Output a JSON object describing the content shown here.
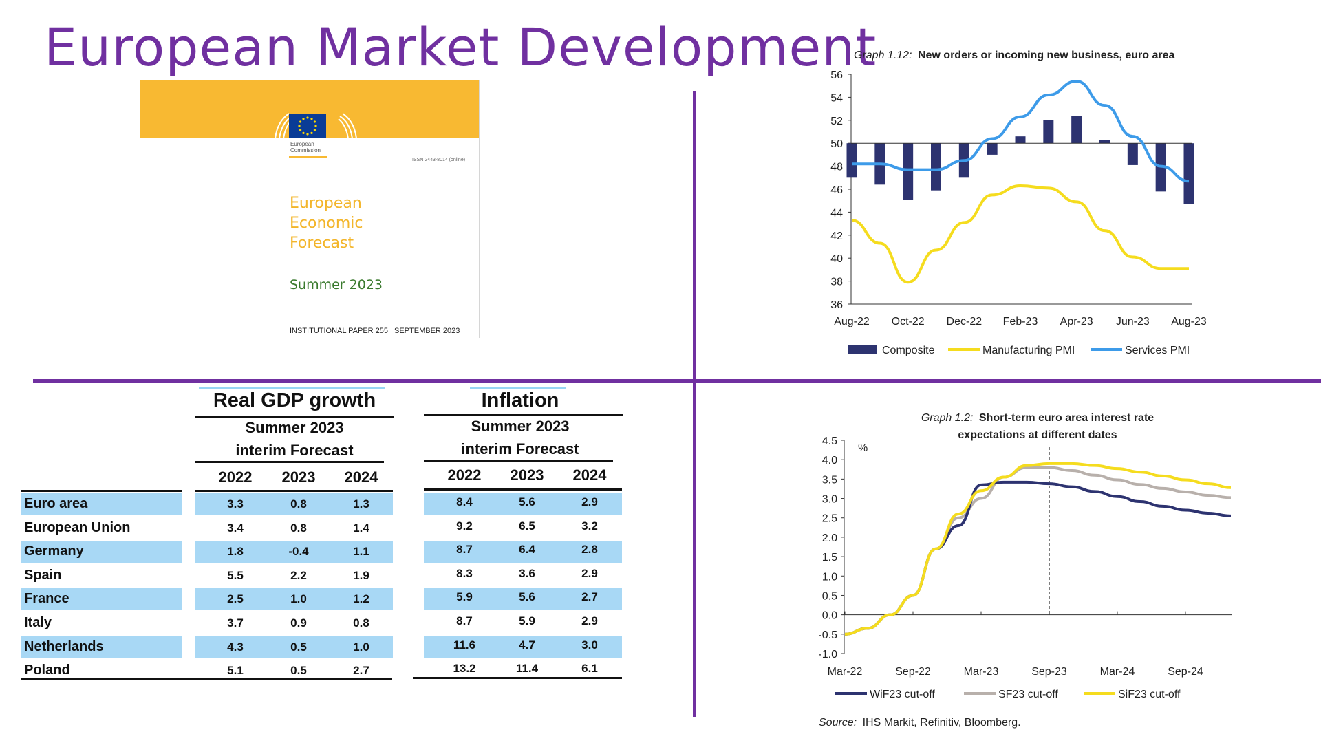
{
  "page": {
    "title": "European Market Development"
  },
  "cover": {
    "publisher_line1": "European",
    "publisher_line2": "Commission",
    "isbn": "ISSN 2443-8014 (online)",
    "title_lines": [
      "European",
      "Economic",
      "Forecast"
    ],
    "edition": "Summer 2023",
    "footer": "INSTITUTIONAL PAPER 255 | SEPTEMBER 2023"
  },
  "tables": {
    "gdp": {
      "title": "Real GDP growth",
      "subtitle_line1": "Summer 2023",
      "subtitle_line2": "interim Forecast",
      "years": [
        "2022",
        "2023",
        "2024"
      ]
    },
    "inflation": {
      "title": "Inflation",
      "subtitle_line1": "Summer 2023",
      "subtitle_line2": "interim Forecast",
      "years": [
        "2022",
        "2023",
        "2024"
      ]
    },
    "rows": [
      {
        "country": "Euro area",
        "gdp": [
          "3.3",
          "0.8",
          "1.3"
        ],
        "inflation": [
          "8.4",
          "5.6",
          "2.9"
        ]
      },
      {
        "country": "European Union",
        "gdp": [
          "3.4",
          "0.8",
          "1.4"
        ],
        "inflation": [
          "9.2",
          "6.5",
          "3.2"
        ]
      },
      {
        "country": "Germany",
        "gdp": [
          "1.8",
          "-0.4",
          "1.1"
        ],
        "inflation": [
          "8.7",
          "6.4",
          "2.8"
        ]
      },
      {
        "country": "Spain",
        "gdp": [
          "5.5",
          "2.2",
          "1.9"
        ],
        "inflation": [
          "8.3",
          "3.6",
          "2.9"
        ]
      },
      {
        "country": "France",
        "gdp": [
          "2.5",
          "1.0",
          "1.2"
        ],
        "inflation": [
          "5.9",
          "5.6",
          "2.7"
        ]
      },
      {
        "country": "Italy",
        "gdp": [
          "3.7",
          "0.9",
          "0.8"
        ],
        "inflation": [
          "8.7",
          "5.9",
          "2.9"
        ]
      },
      {
        "country": "Netherlands",
        "gdp": [
          "4.3",
          "0.5",
          "1.0"
        ],
        "inflation": [
          "11.6",
          "4.7",
          "3.0"
        ]
      },
      {
        "country": "Poland",
        "gdp": [
          "5.1",
          "0.5",
          "2.7"
        ],
        "inflation": [
          "13.2",
          "11.4",
          "6.1"
        ]
      }
    ]
  },
  "chart_data": [
    {
      "type": "bar+line",
      "title_prefix": "Graph 1.12:",
      "title": "New orders or incoming new business, euro area",
      "xlabel": "",
      "ylabel": "",
      "x": [
        "Aug-22",
        "Sep-22",
        "Oct-22",
        "Nov-22",
        "Dec-22",
        "Jan-23",
        "Feb-23",
        "Mar-23",
        "Apr-23",
        "May-23",
        "Jun-23",
        "Jul-23",
        "Aug-23"
      ],
      "x_tick_labels": [
        "Aug-22",
        "Oct-22",
        "Dec-22",
        "Feb-23",
        "Apr-23",
        "Jun-23",
        "Aug-23"
      ],
      "ylim": [
        36,
        56
      ],
      "y_ticks": [
        "36",
        "38",
        "40",
        "42",
        "44",
        "46",
        "48",
        "50",
        "52",
        "54",
        "56"
      ],
      "baseline": 50,
      "series": [
        {
          "name": "Composite",
          "kind": "bar",
          "color": "#2d3370",
          "values": [
            47.0,
            46.4,
            45.1,
            45.9,
            47.0,
            49.0,
            50.6,
            52.0,
            52.4,
            50.3,
            48.1,
            45.8,
            44.7
          ]
        },
        {
          "name": "Manufacturing PMI",
          "kind": "line",
          "color": "#f5dc1e",
          "values": [
            43.3,
            41.3,
            37.9,
            40.7,
            43.1,
            45.5,
            46.3,
            46.1,
            44.9,
            42.4,
            40.1,
            39.1,
            39.1
          ]
        },
        {
          "name": "Services PMI",
          "kind": "line",
          "color": "#3d9be9",
          "values": [
            48.2,
            48.2,
            47.7,
            47.7,
            48.5,
            50.4,
            52.3,
            54.2,
            55.4,
            53.3,
            50.6,
            48.0,
            46.7
          ]
        }
      ],
      "legend": "bottom"
    },
    {
      "type": "line",
      "title_prefix": "Graph 1.2:",
      "title_line1": "Short-term euro area interest rate",
      "title_line2": "expectations at different dates",
      "ylabel": "%",
      "source_prefix": "Source:",
      "source": "IHS Markit, Refinitiv, Bloomberg.",
      "x": [
        "Mar-22",
        "May-22",
        "Jul-22",
        "Sep-22",
        "Nov-22",
        "Jan-23",
        "Mar-23",
        "May-23",
        "Jul-23",
        "Sep-23",
        "Nov-23",
        "Jan-24",
        "Mar-24",
        "May-24",
        "Jul-24",
        "Sep-24",
        "Nov-24",
        "Jan-25"
      ],
      "x_tick_labels": [
        "Mar-22",
        "Sep-22",
        "Mar-23",
        "Sep-23",
        "Mar-24",
        "Sep-24"
      ],
      "ylim": [
        -1.0,
        4.5
      ],
      "y_ticks": [
        "4.5",
        "4.0",
        "3.5",
        "3.0",
        "2.5",
        "2.0",
        "1.5",
        "1.0",
        "0.5",
        "0.0",
        "-0.5",
        "-1.0"
      ],
      "vline_at": "Sep-23",
      "series": [
        {
          "name": "WiF23 cut-off",
          "color": "#2d3370",
          "values": [
            -0.5,
            -0.35,
            0.0,
            0.5,
            1.7,
            2.3,
            3.35,
            3.42,
            3.42,
            3.38,
            3.3,
            3.18,
            3.05,
            2.92,
            2.8,
            2.7,
            2.62,
            2.55
          ]
        },
        {
          "name": "SF23 cut-off",
          "color": "#b8b0ab",
          "values": [
            -0.5,
            -0.35,
            0.0,
            0.5,
            1.7,
            2.5,
            3.0,
            3.55,
            3.8,
            3.8,
            3.72,
            3.6,
            3.48,
            3.36,
            3.26,
            3.17,
            3.08,
            3.02
          ]
        },
        {
          "name": "SiF23 cut-off",
          "color": "#f5dc1e",
          "values": [
            -0.5,
            -0.35,
            0.0,
            0.5,
            1.7,
            2.6,
            3.2,
            3.55,
            3.85,
            3.9,
            3.9,
            3.85,
            3.77,
            3.68,
            3.58,
            3.48,
            3.38,
            3.28
          ]
        }
      ],
      "legend": "bottom"
    }
  ]
}
